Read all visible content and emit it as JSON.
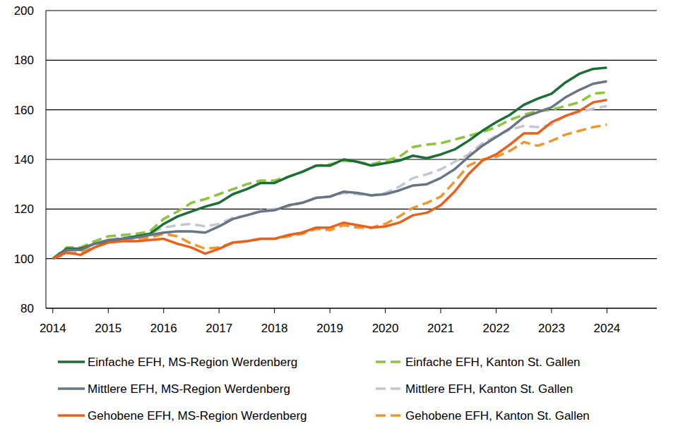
{
  "chart_data": {
    "type": "line",
    "x": [
      2014,
      2014.25,
      2014.5,
      2014.75,
      2015,
      2015.25,
      2015.5,
      2015.75,
      2016,
      2016.25,
      2016.5,
      2016.75,
      2017,
      2017.25,
      2017.5,
      2017.75,
      2018,
      2018.25,
      2018.5,
      2018.75,
      2019,
      2019.25,
      2019.5,
      2019.75,
      2020,
      2020.25,
      2020.5,
      2020.75,
      2021,
      2021.25,
      2021.5,
      2021.75,
      2022,
      2022.25,
      2022.5,
      2022.75,
      2023,
      2023.25,
      2023.5,
      2023.75,
      2024
    ],
    "series": [
      {
        "name": "Einfache EFH, MS-Region Werdenberg",
        "color": "#1b6e36",
        "line_style": "solid",
        "values": [
          100,
          104,
          104,
          106,
          107,
          108,
          109,
          110,
          114,
          117,
          119,
          121,
          122.5,
          126,
          128,
          130.5,
          130.5,
          133,
          135,
          137.5,
          137.5,
          140,
          139,
          137.5,
          138.5,
          139.5,
          141.5,
          140.5,
          142,
          144,
          147.5,
          151.5,
          155,
          158,
          162,
          164.5,
          166.5,
          171,
          174.5,
          176.5,
          177
        ]
      },
      {
        "name": "Einfache EFH, Kanton St. Gallen",
        "color": "#8cc43c",
        "line_style": "dashed",
        "values": [
          100,
          104.5,
          104.5,
          107,
          109,
          109.5,
          110,
          111,
          116,
          119,
          122.5,
          124,
          126,
          128,
          130,
          131.5,
          131.5,
          133,
          135,
          137.5,
          138,
          139.5,
          139,
          138,
          139.5,
          141,
          145,
          146,
          146.5,
          148,
          149.5,
          151,
          153,
          156,
          158,
          159.5,
          160,
          161.5,
          163,
          166.5,
          167
        ]
      },
      {
        "name": "Mittlere EFH, MS-Region Werdenberg",
        "color": "#687482",
        "line_style": "solid",
        "values": [
          100,
          103.5,
          103.5,
          106,
          107.5,
          108,
          108.5,
          109.5,
          110.5,
          111,
          111,
          110.5,
          113,
          116,
          117.5,
          119,
          119.5,
          121.5,
          122.5,
          124.5,
          125,
          127,
          126.5,
          125.5,
          126,
          127.5,
          129.5,
          130,
          132.5,
          136,
          141,
          145.5,
          149,
          152.5,
          157,
          159,
          161,
          165,
          168,
          170.5,
          171.5
        ]
      },
      {
        "name": "Mittlere EFH, Kanton St. Gallen",
        "color": "#c3c7d3",
        "line_style": "dashed",
        "values": [
          100,
          103,
          103.5,
          106,
          107.5,
          108.5,
          109,
          110,
          112.5,
          113.5,
          114,
          113,
          114,
          116.5,
          117.5,
          119.5,
          120,
          121,
          122.5,
          124.5,
          125,
          126.5,
          126,
          125.5,
          126.5,
          129,
          132.5,
          134,
          136,
          139,
          142,
          146.5,
          149.5,
          152,
          153.5,
          153,
          154,
          157.5,
          159,
          160.5,
          161.5
        ]
      },
      {
        "name": "Gehobene EFH, MS-Region Werdenberg",
        "color": "#e8601c",
        "line_style": "solid",
        "values": [
          100,
          102.5,
          101.5,
          104.5,
          106.5,
          107,
          107,
          107.5,
          108,
          106,
          104.5,
          102,
          104,
          106.5,
          107,
          108,
          108,
          109.5,
          110.5,
          112.5,
          112.5,
          114.5,
          113.5,
          112.5,
          113,
          114.5,
          117.5,
          118.5,
          121.5,
          127,
          134,
          139.5,
          142,
          146,
          150.5,
          150.5,
          155,
          157.5,
          159.5,
          163,
          164
        ]
      },
      {
        "name": "Gehobene EFH, Kanton St. Gallen",
        "color": "#f0962e",
        "line_style": "dashed",
        "values": [
          100,
          102,
          102.5,
          104.5,
          107,
          107.5,
          108,
          108.5,
          110,
          109,
          106,
          104,
          104.5,
          106.5,
          107,
          108,
          108,
          109,
          110,
          112,
          111.5,
          113.5,
          112.5,
          112.5,
          114,
          117,
          120.5,
          122.5,
          125,
          131,
          137.5,
          140,
          141,
          143.5,
          147,
          145.5,
          147.5,
          150,
          151.5,
          153,
          154
        ]
      }
    ],
    "xlim": [
      2013.875,
      2024.9
    ],
    "xticks": [
      2014,
      2015,
      2016,
      2017,
      2018,
      2019,
      2020,
      2021,
      2022,
      2023,
      2024
    ],
    "ylim": [
      80,
      200
    ],
    "yticks": [
      80,
      100,
      120,
      140,
      160,
      180,
      200
    ],
    "grid": true,
    "legend": "bottom"
  }
}
